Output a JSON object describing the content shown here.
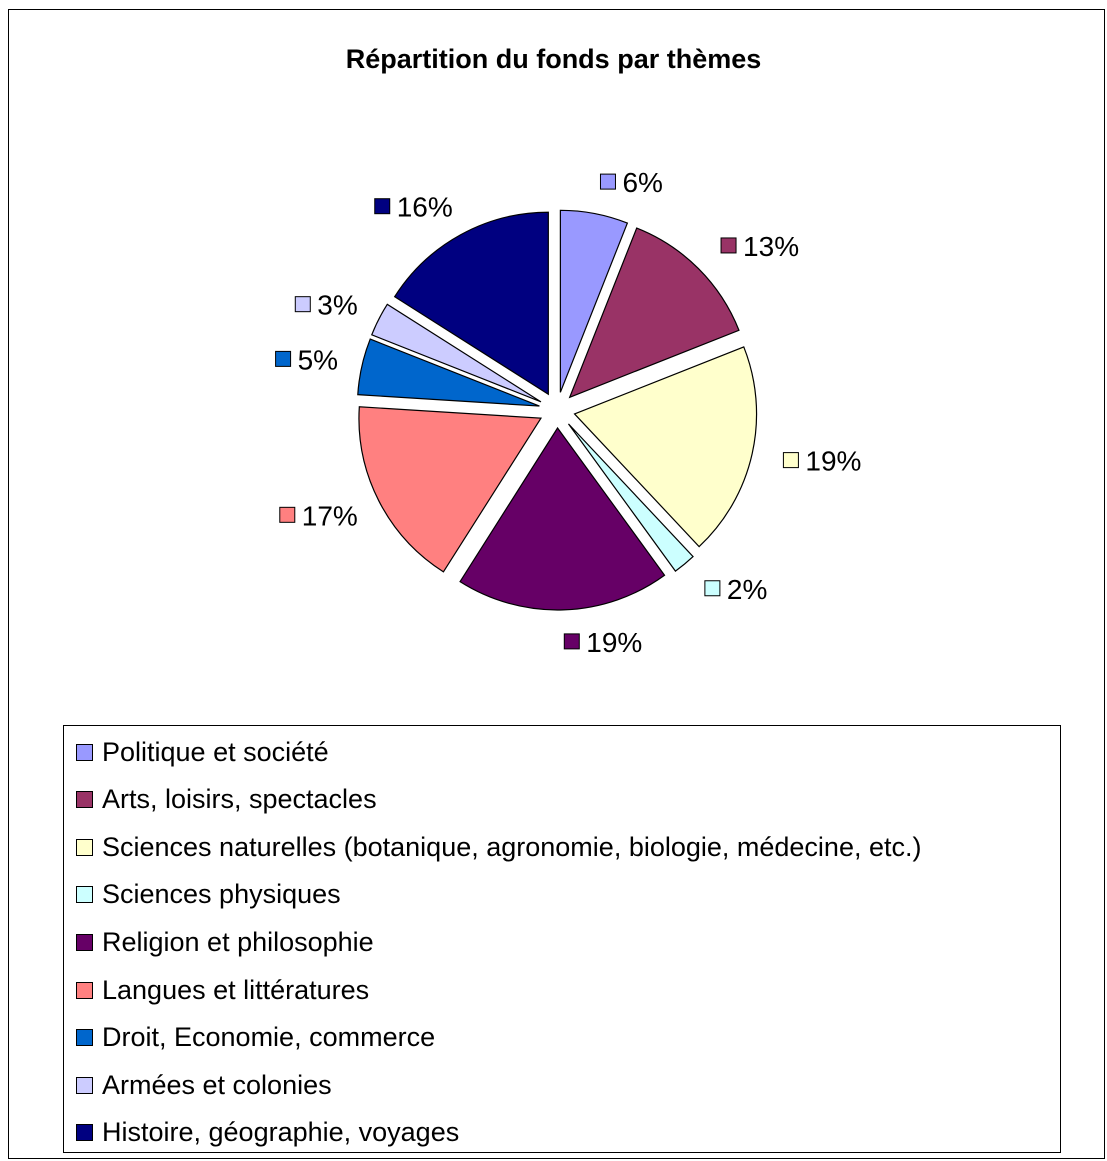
{
  "chart_data": {
    "type": "pie",
    "title": "Répartition du fonds par thèmes",
    "exploded": true,
    "legend_position": "bottom",
    "slices": [
      {
        "name": "Politique et société",
        "value": 6,
        "label": "6%",
        "color": "#9999ff"
      },
      {
        "name": "Arts, loisirs, spectacles",
        "value": 13,
        "label": "13%",
        "color": "#993366"
      },
      {
        "name": "Sciences naturelles (botanique, agronomie, biologie, médecine, etc.)",
        "value": 19,
        "label": "19%",
        "color": "#ffffcc"
      },
      {
        "name": "Sciences physiques",
        "value": 2,
        "label": "2%",
        "color": "#ccffff"
      },
      {
        "name": "Religion et philosophie",
        "value": 19,
        "label": "19%",
        "color": "#660066"
      },
      {
        "name": "Langues et littératures",
        "value": 17,
        "label": "17%",
        "color": "#ff8080"
      },
      {
        "name": "Droit, Economie, commerce",
        "value": 5,
        "label": "5%",
        "color": "#0066cc"
      },
      {
        "name": "Armées et colonies",
        "value": 3,
        "label": "3%",
        "color": "#ccccff"
      },
      {
        "name": "Histoire, géographie, voyages",
        "value": 16,
        "label": "16%",
        "color": "#000080"
      }
    ]
  }
}
